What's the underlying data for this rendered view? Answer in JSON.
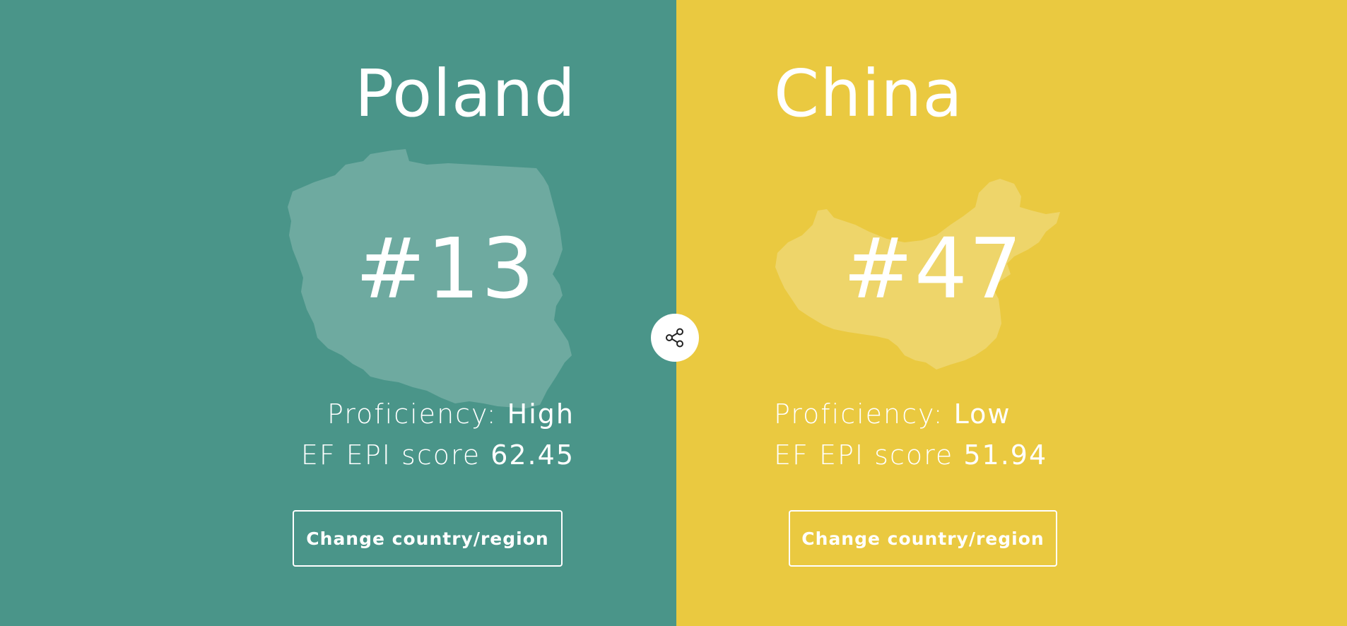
{
  "left": {
    "country": "Poland",
    "rank": "#13",
    "proficiency_label": "Proficiency: ",
    "proficiency_value": "High",
    "score_label": "EF EPI score ",
    "score_value": "62.45",
    "change_label": "Change country/region",
    "bg_color": "#4a9589"
  },
  "right": {
    "country": "China",
    "rank": "#47",
    "proficiency_label": "Proficiency: ",
    "proficiency_value": "Low",
    "score_label": "EF EPI score ",
    "score_value": "51.94",
    "change_label": "Change country/region",
    "bg_color": "#eac940"
  },
  "share": {
    "icon": "share-icon"
  }
}
